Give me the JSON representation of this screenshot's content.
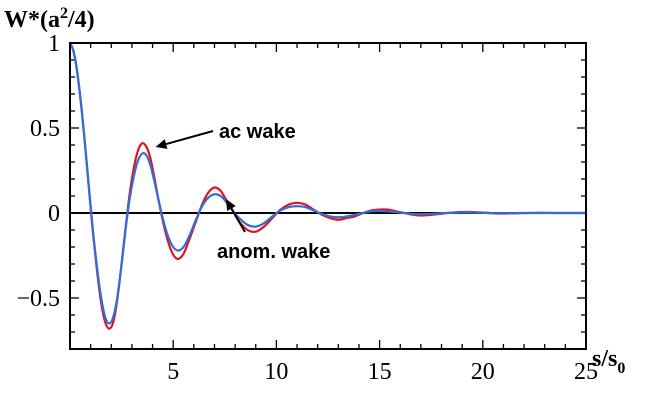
{
  "chart_data": {
    "type": "line",
    "title": "",
    "ylabel": {
      "base": "W*(a",
      "sup": "2",
      "tail": "/4)"
    },
    "xlabel": {
      "base": "s/s",
      "sub": "0"
    },
    "xlim": [
      0,
      25
    ],
    "ylim": [
      -0.8,
      1.0
    ],
    "xticks": [
      5,
      10,
      15,
      20,
      25
    ],
    "xtick_labels": [
      "5",
      "10",
      "15",
      "20",
      "25"
    ],
    "yticks": [
      1,
      0.5,
      0,
      -0.5
    ],
    "ytick_labels": [
      "1",
      "0.5",
      "0",
      "−0.5"
    ],
    "grid": false,
    "zero_line": true,
    "series": [
      {
        "name": "ac wake",
        "color": "#e0141e",
        "x": [
          0,
          0.15,
          0.3,
          0.5,
          0.7,
          0.9,
          1.1,
          1.3,
          1.5,
          1.7,
          1.9,
          2.1,
          2.3,
          2.5,
          2.7,
          2.9,
          3.1,
          3.3,
          3.5,
          3.7,
          3.9,
          4.1,
          4.3,
          4.6,
          4.9,
          5.2,
          5.5,
          5.8,
          6.1,
          6.4,
          6.7,
          7.0,
          7.3,
          7.6,
          7.9,
          8.2,
          8.6,
          9.0,
          9.4,
          9.8,
          10.2,
          10.6,
          11.0,
          11.4,
          11.8,
          12.2,
          12.6,
          13.0,
          13.4,
          13.8,
          14.2,
          14.6,
          15.0,
          15.4,
          15.8,
          16.2,
          16.6,
          17.0,
          17.4,
          17.8,
          18.2,
          18.6,
          19.0,
          19.4,
          19.8,
          20.2,
          20.6,
          21.0,
          21.4,
          21.8,
          22.2,
          22.6,
          23.0,
          23.5,
          24.0,
          24.5,
          25.0
        ],
        "values": [
          1.0,
          0.96,
          0.87,
          0.68,
          0.44,
          0.17,
          -0.1,
          -0.33,
          -0.52,
          -0.64,
          -0.68,
          -0.64,
          -0.5,
          -0.3,
          -0.08,
          0.12,
          0.27,
          0.37,
          0.41,
          0.39,
          0.32,
          0.2,
          0.07,
          -0.1,
          -0.22,
          -0.27,
          -0.24,
          -0.15,
          -0.05,
          0.05,
          0.12,
          0.15,
          0.13,
          0.07,
          0.01,
          -0.05,
          -0.1,
          -0.11,
          -0.08,
          -0.03,
          0.02,
          0.05,
          0.06,
          0.05,
          0.02,
          -0.01,
          -0.03,
          -0.04,
          -0.03,
          -0.02,
          0.0,
          0.015,
          0.02,
          0.02,
          0.01,
          0.0,
          -0.01,
          -0.015,
          -0.012,
          -0.007,
          -0.002,
          0.003,
          0.006,
          0.006,
          0.004,
          0.001,
          -0.002,
          -0.003,
          -0.002,
          -0.001,
          0.0,
          0.001,
          0.001,
          0.0,
          0.0,
          0.0,
          0.0
        ]
      },
      {
        "name": "anom. wake",
        "color": "#2f6fd6",
        "x": [
          0,
          0.15,
          0.3,
          0.5,
          0.7,
          0.9,
          1.1,
          1.3,
          1.5,
          1.7,
          1.9,
          2.1,
          2.3,
          2.5,
          2.7,
          2.9,
          3.1,
          3.3,
          3.5,
          3.7,
          3.9,
          4.1,
          4.3,
          4.6,
          4.9,
          5.2,
          5.5,
          5.8,
          6.1,
          6.4,
          6.7,
          7.0,
          7.3,
          7.6,
          7.9,
          8.2,
          8.6,
          9.0,
          9.4,
          9.8,
          10.2,
          10.6,
          11.0,
          11.4,
          11.8,
          12.2,
          12.6,
          13.0,
          13.4,
          13.8,
          14.2,
          14.6,
          15.0,
          15.4,
          15.8,
          16.2,
          16.6,
          17.0,
          17.4,
          17.8,
          18.2,
          18.6,
          19.0,
          19.4,
          19.8,
          20.2,
          20.6,
          21.0,
          21.4,
          21.8,
          22.2,
          22.6,
          23.0,
          23.5,
          24.0,
          24.5,
          25.0
        ],
        "values": [
          1.0,
          0.96,
          0.87,
          0.68,
          0.44,
          0.17,
          -0.09,
          -0.31,
          -0.49,
          -0.61,
          -0.65,
          -0.61,
          -0.49,
          -0.3,
          -0.09,
          0.09,
          0.22,
          0.31,
          0.35,
          0.34,
          0.28,
          0.18,
          0.07,
          -0.08,
          -0.18,
          -0.22,
          -0.2,
          -0.13,
          -0.04,
          0.04,
          0.09,
          0.11,
          0.1,
          0.06,
          0.01,
          -0.03,
          -0.07,
          -0.08,
          -0.06,
          -0.02,
          0.015,
          0.035,
          0.04,
          0.035,
          0.015,
          -0.005,
          -0.02,
          -0.025,
          -0.02,
          -0.01,
          0.0,
          0.01,
          0.012,
          0.01,
          0.005,
          0.0,
          -0.005,
          -0.007,
          -0.006,
          -0.003,
          0.0,
          0.002,
          0.003,
          0.003,
          0.002,
          0.0,
          -0.001,
          -0.001,
          -0.001,
          0.0,
          0.0,
          0.0,
          0.0,
          0.0,
          0.0,
          0.0,
          0.0
        ]
      }
    ],
    "annotations": [
      {
        "text": "ac wake",
        "x": 3.9,
        "y": 0.4,
        "arrow_from_label": true
      },
      {
        "text": "anom. wake",
        "x": 7.7,
        "y": 0.1,
        "arrow_from_label": true
      }
    ]
  }
}
